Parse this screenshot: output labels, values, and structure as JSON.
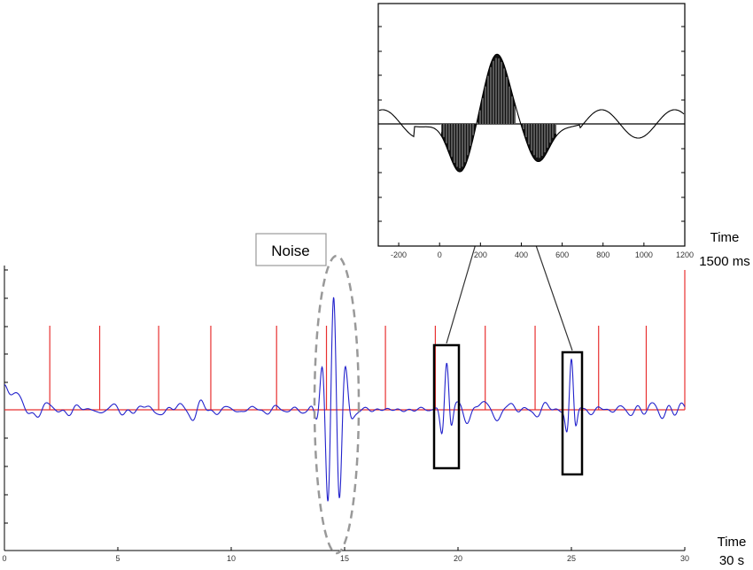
{
  "chart_data": [
    {
      "type": "line",
      "panel": "main",
      "xlim": [
        0,
        30
      ],
      "x_ticks": [
        0,
        5,
        10,
        15,
        20,
        25,
        30
      ],
      "axis_label": [
        "Time",
        "30 s"
      ],
      "signal_color": "#2222cc",
      "marker_color": "#e83030",
      "event_markers_x": [
        2,
        4.2,
        6.8,
        9.1,
        12.0,
        14.2,
        16.8,
        19.0,
        21.2,
        23.4,
        26.2,
        28.3,
        30
      ],
      "annotations": [
        {
          "type": "ellipse",
          "label": "Noise",
          "x_range": [
            13.6,
            15.5
          ]
        },
        {
          "type": "box",
          "x_range": [
            18.9,
            20.0
          ]
        },
        {
          "type": "box",
          "x_range": [
            24.6,
            25.5
          ]
        }
      ]
    },
    {
      "type": "line",
      "panel": "inset",
      "xlim": [
        -300,
        1200
      ],
      "x_ticks": [
        -200,
        0,
        200,
        400,
        600,
        800,
        1000,
        1200
      ],
      "axis_label": [
        "Time",
        "1500 ms"
      ],
      "components": [
        {
          "polarity": "negative",
          "peak_ms": 100
        },
        {
          "polarity": "positive",
          "peak_ms": 280
        },
        {
          "polarity": "negative",
          "peak_ms": 480
        }
      ]
    }
  ],
  "labels": {
    "noise": "Noise",
    "main_time": "Time",
    "main_duration": "30 s",
    "inset_time": "Time",
    "inset_duration": "1500 ms"
  }
}
